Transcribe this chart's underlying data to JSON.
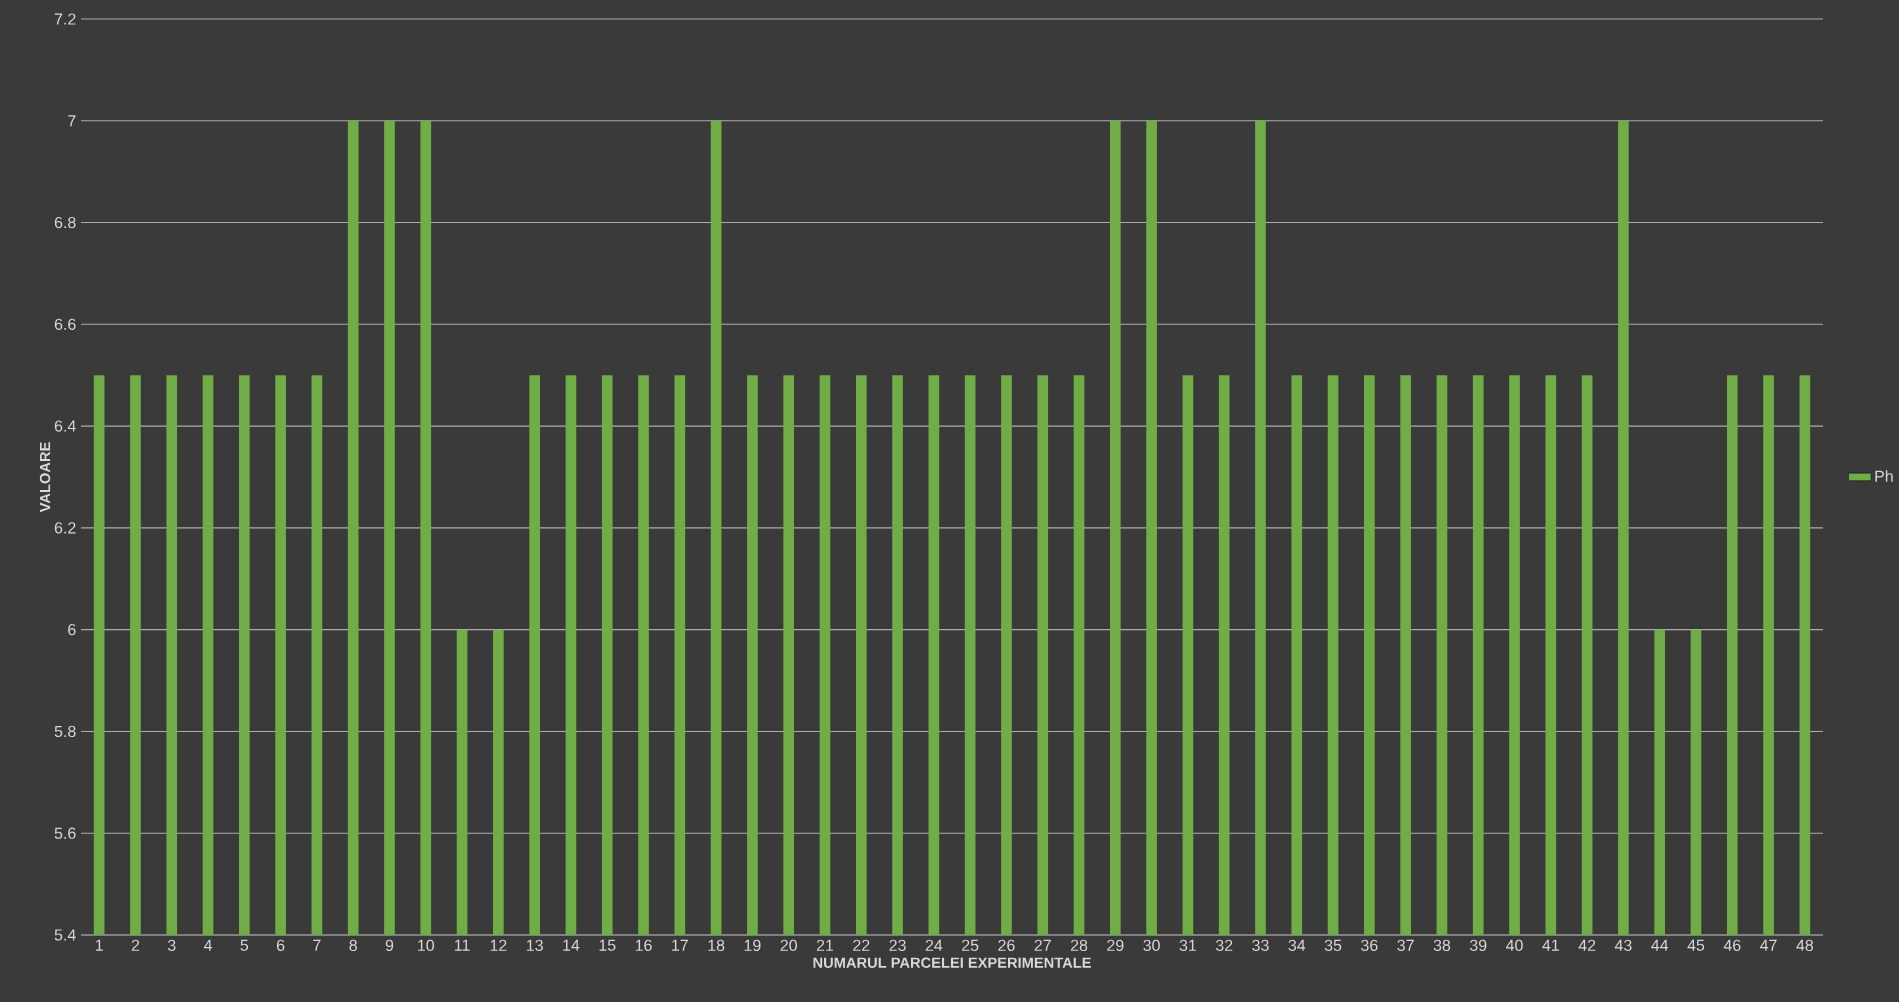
{
  "chart_data": {
    "type": "bar",
    "xlabel": "NUMARUL PARCELEI EXPERIMENTALE",
    "ylabel": "VALOARE",
    "categories": [
      "1",
      "2",
      "3",
      "4",
      "5",
      "6",
      "7",
      "8",
      "9",
      "10",
      "11",
      "12",
      "13",
      "14",
      "15",
      "16",
      "17",
      "18",
      "19",
      "20",
      "21",
      "22",
      "23",
      "24",
      "25",
      "26",
      "27",
      "28",
      "29",
      "30",
      "31",
      "32",
      "33",
      "34",
      "35",
      "36",
      "37",
      "38",
      "39",
      "40",
      "41",
      "42",
      "43",
      "44",
      "45",
      "46",
      "47",
      "48"
    ],
    "series": [
      {
        "name": "Ph",
        "color": "#70ad47",
        "values": [
          6.5,
          6.5,
          6.5,
          6.5,
          6.5,
          6.5,
          6.5,
          7,
          7,
          7,
          6,
          6,
          6.5,
          6.5,
          6.5,
          6.5,
          6.5,
          7,
          6.5,
          6.5,
          6.5,
          6.5,
          6.5,
          6.5,
          6.5,
          6.5,
          6.5,
          6.5,
          7,
          7,
          6.5,
          6.5,
          7,
          6.5,
          6.5,
          6.5,
          6.5,
          6.5,
          6.5,
          6.5,
          6.5,
          6.5,
          7,
          6,
          6,
          6.5,
          6.5,
          6.5
        ]
      }
    ],
    "ylim": [
      5.4,
      7.2
    ],
    "yticks": [
      5.4,
      5.6,
      5.8,
      6,
      6.2,
      6.4,
      6.6,
      6.8,
      7,
      7.2
    ],
    "grid": "y",
    "legend": "right"
  }
}
